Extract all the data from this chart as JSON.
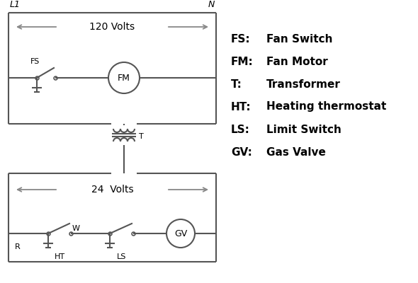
{
  "bg_color": "#ffffff",
  "line_color": "#555555",
  "text_color": "#000000",
  "legend": [
    [
      "FS:",
      "Fan Switch"
    ],
    [
      "FM:",
      "Fan Motor"
    ],
    [
      "T:",
      "Transformer"
    ],
    [
      "HT:",
      "Heating thermostat"
    ],
    [
      "LS:",
      "Limit Switch"
    ],
    [
      "GV:",
      "Gas Valve"
    ]
  ],
  "volts_120_label": "120 Volts",
  "volts_24_label": "24  Volts",
  "L1_label": "L1",
  "N_label": "N",
  "T_label": "T",
  "arrow_color": "#888888"
}
